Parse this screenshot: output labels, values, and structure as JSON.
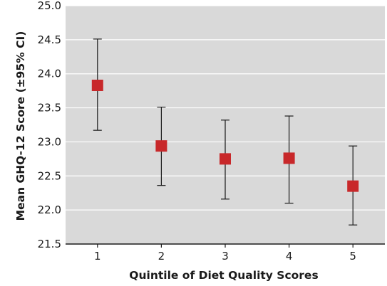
{
  "chart_data": {
    "type": "scatter",
    "title": "",
    "xlabel": "Quintile of Diet Quality Scores",
    "ylabel": "Mean GHQ-12 Score (±95% CI)",
    "categories": [
      "1",
      "2",
      "3",
      "4",
      "5"
    ],
    "values": [
      23.83,
      22.94,
      22.75,
      22.76,
      22.35
    ],
    "ci_lower": [
      23.17,
      22.36,
      22.16,
      22.1,
      21.78
    ],
    "ci_upper": [
      24.51,
      23.51,
      23.32,
      23.38,
      22.94
    ],
    "ylim": [
      21.5,
      25.0
    ],
    "yticks": [
      "21.5",
      "22.0",
      "22.5",
      "23.0",
      "23.5",
      "24.0",
      "24.5",
      "25.0"
    ],
    "grid": true,
    "colors": {
      "plot_background": "#d9d9d9",
      "gridline": "#ffffff",
      "marker": "#c8282a",
      "error_bar": "#1a1a1a"
    }
  }
}
